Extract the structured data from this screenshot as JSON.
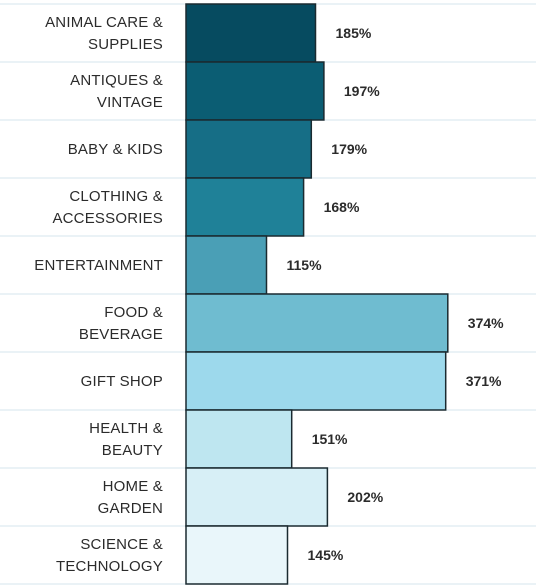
{
  "chart_data": {
    "type": "bar",
    "orientation": "horizontal",
    "categories": [
      [
        "ANIMAL CARE &",
        "SUPPLIES"
      ],
      [
        "ANTIQUES &",
        "VINTAGE"
      ],
      [
        "BABY & KIDS"
      ],
      [
        "CLOTHING &",
        "ACCESSORIES"
      ],
      [
        "ENTERTAINMENT"
      ],
      [
        "FOOD &",
        "BEVERAGE"
      ],
      [
        "GIFT SHOP"
      ],
      [
        "HEALTH &",
        "BEAUTY"
      ],
      [
        "HOME &",
        "GARDEN"
      ],
      [
        "SCIENCE &",
        "TECHNOLOGY"
      ]
    ],
    "values": [
      185,
      197,
      179,
      168,
      115,
      374,
      371,
      151,
      202,
      145
    ],
    "value_labels": [
      "185%",
      "197%",
      "179%",
      "168%",
      "115%",
      "374%",
      "371%",
      "151%",
      "202%",
      "145%"
    ],
    "value_unit": "%",
    "bar_colors": [
      "#064b60",
      "#0b5d73",
      "#166e86",
      "#1f8198",
      "#4a9fb6",
      "#6fbcd0",
      "#9dd9ec",
      "#bee6f0",
      "#d7eff6",
      "#e9f6fa"
    ],
    "grid": true,
    "legend": "none"
  }
}
